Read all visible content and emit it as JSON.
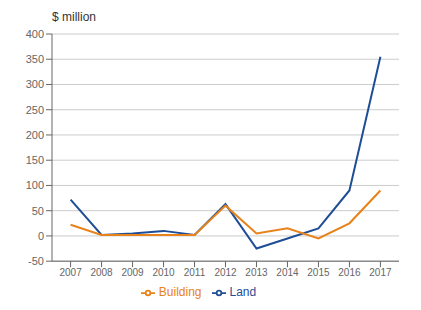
{
  "chart_data": {
    "type": "line",
    "x": [
      2007,
      2008,
      2009,
      2010,
      2011,
      2012,
      2013,
      2014,
      2015,
      2016,
      2017
    ],
    "series": [
      {
        "name": "Land",
        "color": "#1F4E96",
        "values": [
          72,
          2,
          5,
          10,
          2,
          63,
          -25,
          -5,
          15,
          90,
          355
        ]
      },
      {
        "name": "Building",
        "color": "#E8821A",
        "values": [
          22,
          2,
          2,
          2,
          2,
          60,
          5,
          15,
          -5,
          25,
          90
        ]
      }
    ],
    "ylabel": "$ million",
    "xlim": [
      2006.4,
      2017.6
    ],
    "xticks": [
      2007,
      2008,
      2009,
      2010,
      2011,
      2012,
      2013,
      2014,
      2015,
      2016,
      2017
    ],
    "ylim": [
      -50,
      400
    ],
    "yticks": [
      -50,
      0,
      50,
      100,
      150,
      200,
      250,
      300,
      350,
      400
    ],
    "grid": true,
    "legend": "bottom"
  }
}
